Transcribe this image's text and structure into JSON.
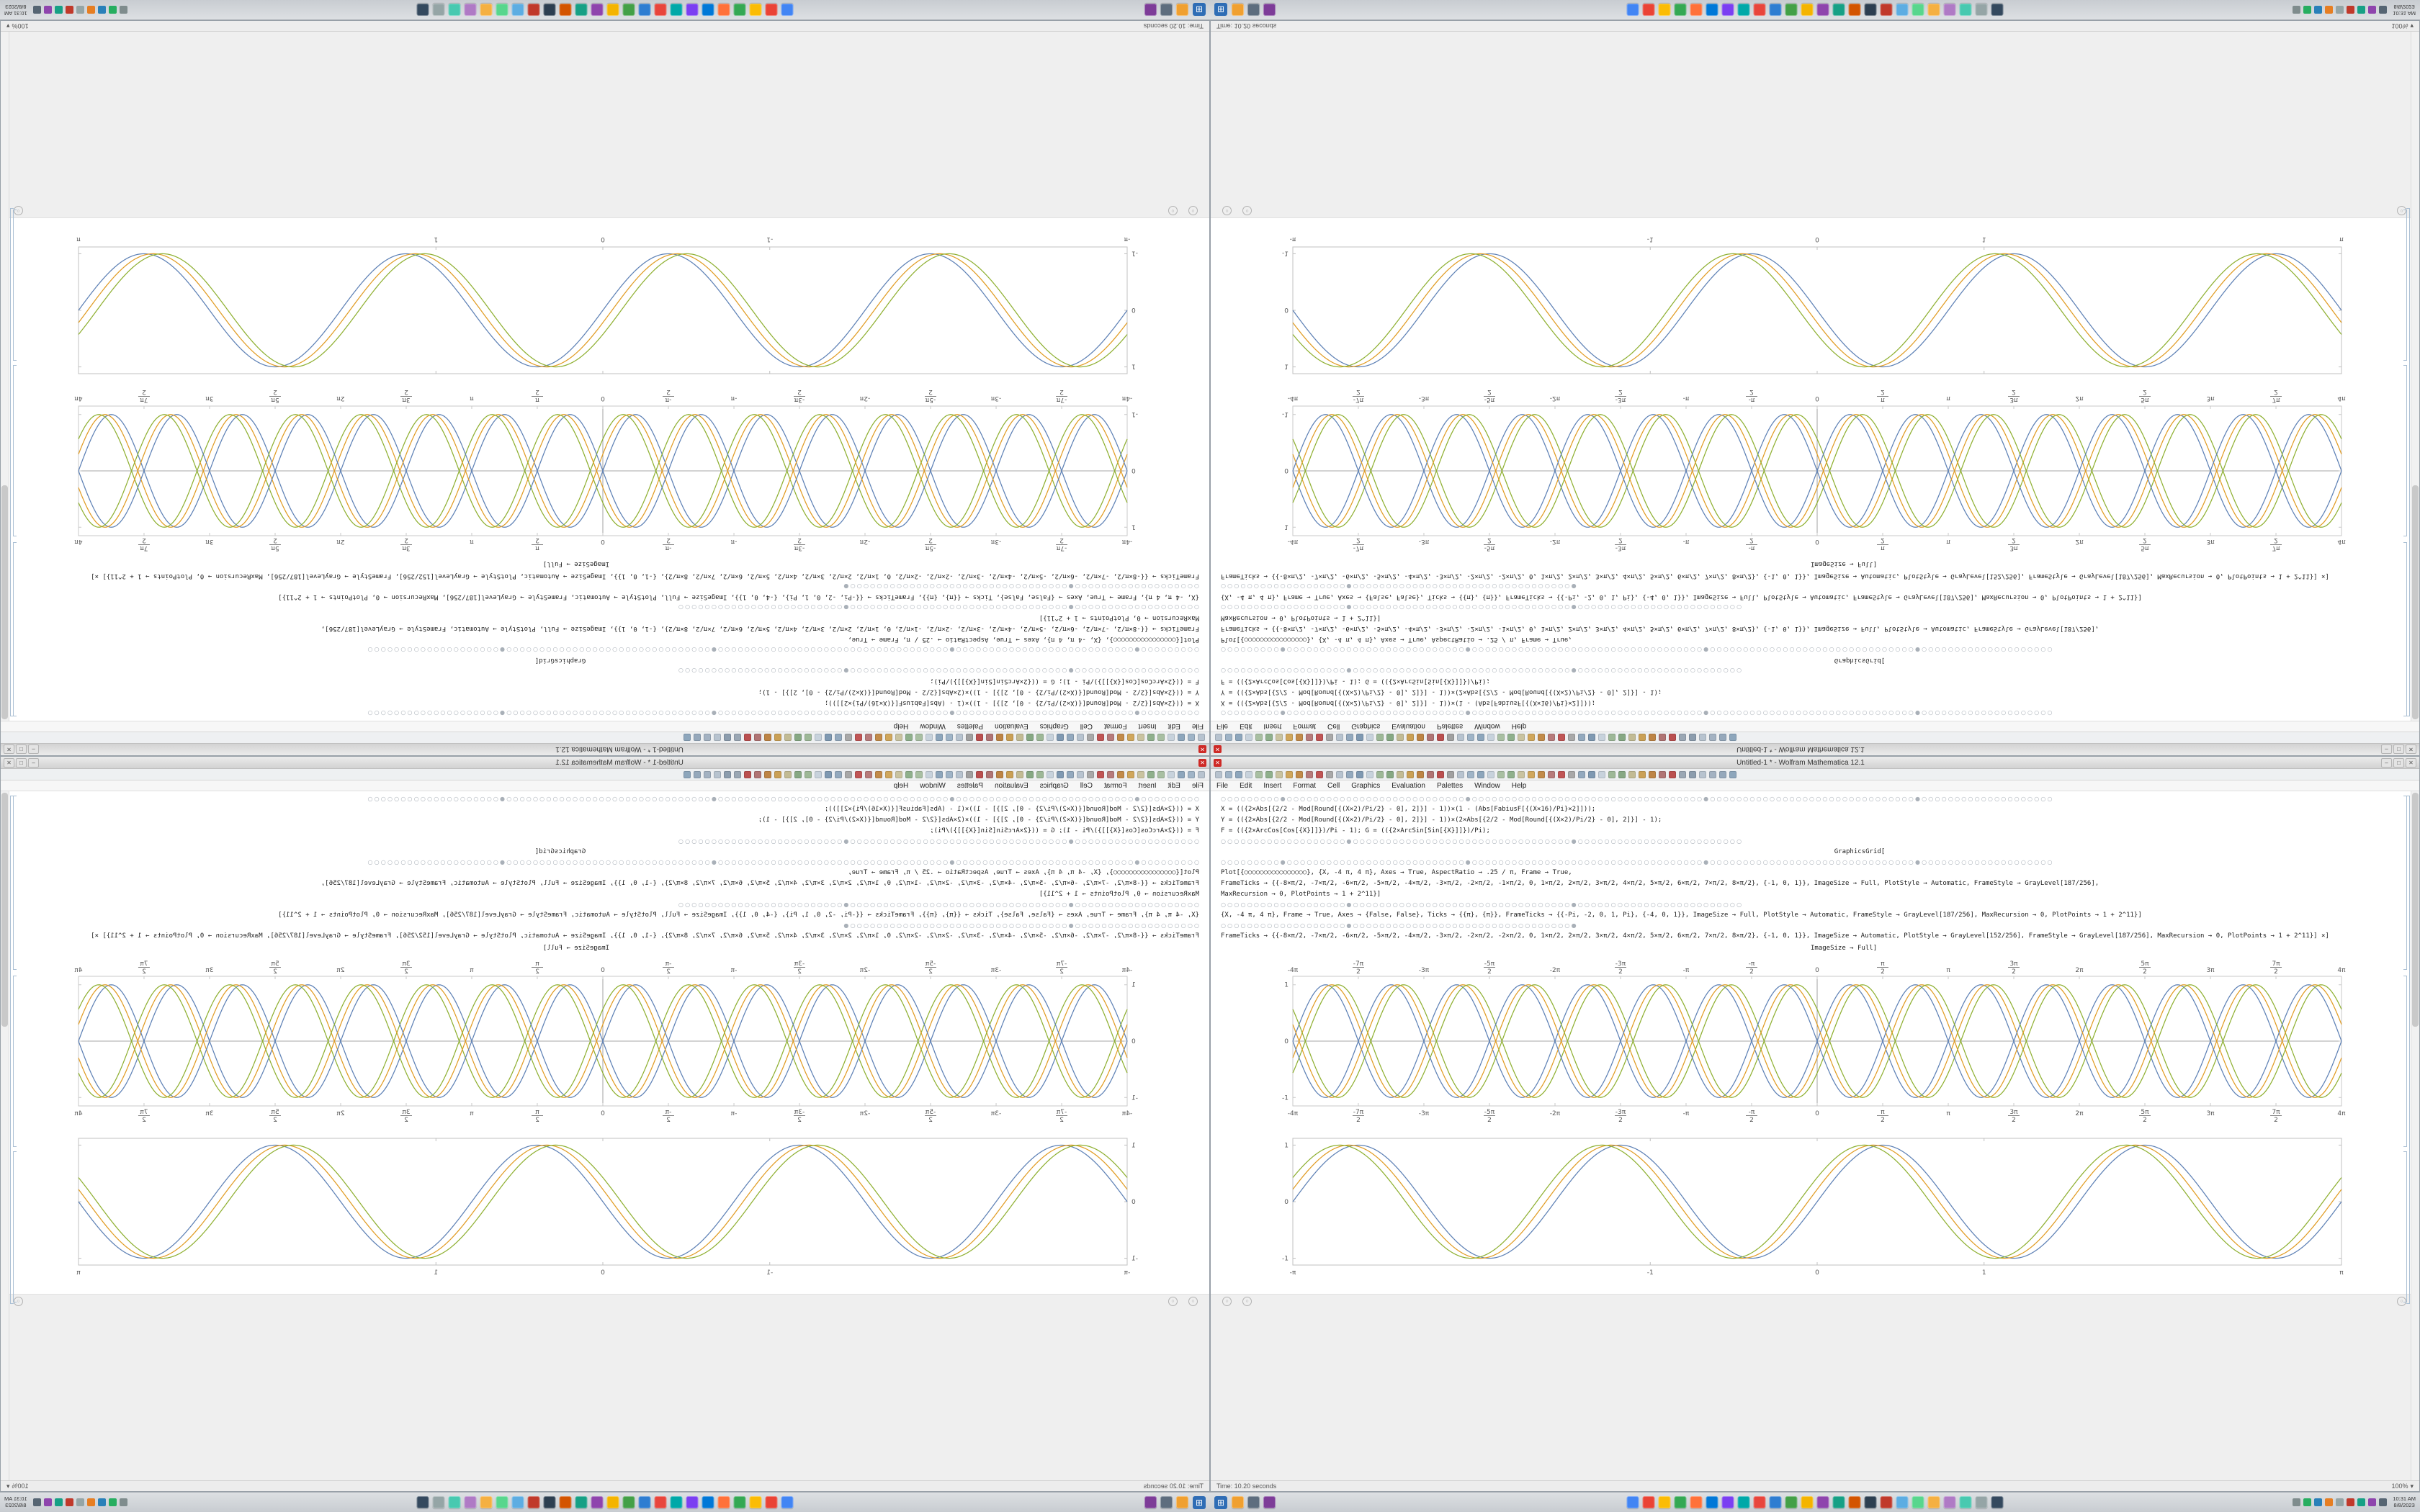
{
  "window": {
    "title": "Untitled-1 * - Wolfram Mathematica 12.1",
    "app_icon_glyph": "✕",
    "window_buttons": [
      "–",
      "□",
      "✕"
    ],
    "menu_items": [
      "File",
      "Edit",
      "Insert",
      "Format",
      "Cell",
      "Graphics",
      "Evaluation",
      "Palettes",
      "Window",
      "Help"
    ]
  },
  "toolbar": {
    "icon_colors": [
      "#b7c3cf",
      "#9fb4c7",
      "#8da6bc",
      "#c7d2dc",
      "#a8bfa2",
      "#8fb08c",
      "#c9c3a0",
      "#d0a75c",
      "#c28b4a",
      "#b77b7b",
      "#c05555",
      "#a8a8a8",
      "#b7c3cf",
      "#93a9be",
      "#7f99b2",
      "#c7d2dc",
      "#9db897",
      "#86a883",
      "#c2bb94",
      "#caa055",
      "#bd8445",
      "#b07474",
      "#ba4f4f",
      "#a0a0a0",
      "#b7c3cf",
      "#9fb4c7",
      "#8da6bc",
      "#c7d2dc",
      "#a8bfa2",
      "#8fb08c",
      "#c9c3a0",
      "#d0a75c",
      "#c28b4a",
      "#b77b7b",
      "#c05555",
      "#a8a8a8",
      "#93a9be",
      "#7f99b2",
      "#c7d2dc",
      "#9db897",
      "#86a883",
      "#c2bb94",
      "#caa055",
      "#bd8445",
      "#b07474",
      "#ba4f4f",
      "#9aa7b4",
      "#8c9dae",
      "#b7c3cf",
      "#a3b2c2",
      "#95a8bb",
      "#8da6bc"
    ]
  },
  "notebook": {
    "corner_glyph": "○",
    "code_lines": [
      {
        "kind": "circles",
        "text": "○○○○○○○○○●○○○○○○○○○○○○○○○○○○○○○○○○○○○●○○○○○○○○○○○○○○○○○○○○○○○○○○○○○○○○○○○●○○○○○○○○○○○○○○○○○○○○○○○○○○○○○○○●○○○○○○○○○○○○○○○○○○○○"
      },
      {
        "kind": "code",
        "text": "X = (({2×Abs[{2/2 - Mod[Round[{(X×2)/Pi/2} - 0], 2]}] - 1))×(1 - (Abs[FabiusF[{(X×16)/Pi}×2]]));"
      },
      {
        "kind": "code",
        "text": "Y = (({2×Abs[{2/2 - Mod[Round[{(X×2)/Pi/2} - 0], 2]}] - 1))×(2×Abs[{2/2 - Mod[Round[{(X×2)/Pi/2} - 0], 2]}] - 1);"
      },
      {
        "kind": "code",
        "text": "F = (({2×ArcCos[Cos[{X}]]})/Pi - 1);   G = (({2×ArcSin[Sin[{X}]]})/Pi);"
      },
      {
        "kind": "circles",
        "text": "○○○○○○○○○○○○○○○○○○○●○○○○○○○○○○○○○○○○○○○○○○○○○○○○○○○○○●○○○○○○○○○○○○○○○○○○○○○○○○○"
      },
      {
        "kind": "center",
        "text": "GraphicsGrid["
      },
      {
        "kind": "circles",
        "text": "○○○○○○○○○●○○○○○○○○○○○○○○○○○○○○○○○○○○○●○○○○○○○○○○○○○○○○○○○○○○○○○○○○○○○○○○○●○○○○○○○○○○○○○○○○○○○○○○○○○○○○○○○●○○○○○○○○○○○○○○○○○○○○"
      },
      {
        "kind": "code",
        "text": "Plot[{○○○○○○○○○○○○○○○○}, {X, -4 π, 4 π}, Axes → True, AspectRatio → .25 / π, Frame → True,"
      },
      {
        "kind": "code",
        "text": "FrameTicks → {{-8×π/2, -7×π/2, -6×π/2, -5×π/2, -4×π/2, -3×π/2, -2×π/2, -1×π/2, 0, 1×π/2, 2×π/2, 3×π/2, 4×π/2, 5×π/2, 6×π/2, 7×π/2, 8×π/2}, {-1, 0, 1}}, ImageSize → Full, PlotStyle → Automatic, FrameStyle → GrayLevel[187/256],"
      },
      {
        "kind": "code",
        "text": "MaxRecursion → 0, PlotPoints → 1 + 2^11}]"
      },
      {
        "kind": "circles",
        "text": "○○○○○○○○○○○○○○○○○○○●○○○○○○○○○○○○○○○○○○○○○○○○○○○○○○○○○●○○○○○○○○○○○○○○○○○○○○○○○○○"
      },
      {
        "kind": "code",
        "text": "{X, -4 π, 4 π}, Frame → True, Axes → {False, False}, Ticks → {{π}, {π}}, FrameTicks → {{-Pi, -2, 0, 1, Pi}, {-4, 0, 1}}, ImageSize → Full, PlotStyle → Automatic, FrameStyle → GrayLevel[187/256], MaxRecursion → 0, PlotPoints → 1 + 2^11}]"
      },
      {
        "kind": "circles",
        "text": "○○○○○○○○○○○○○○○○○○○●○○○○○○○○○○○○○○○○○○○○○○○○○○○○○○○○○●"
      },
      {
        "kind": "code",
        "text": "FrameTicks → {{-8×π/2, -7×π/2, -6×π/2, -5×π/2, -4×π/2, -3×π/2, -2×π/2, -2×π/2, 0, 1×π/2, 2×π/2, 3×π/2, 4×π/2, 5×π/2, 6×π/2, 7×π/2, 8×π/2}, {-1, 0, 1}}, ImageSize → Automatic, PlotStyle → GrayLevel[152/256], FrameStyle → GrayLevel[187/256], MaxRecursion → 0, PlotPoints → 1 + 2^11}] ×]"
      },
      {
        "kind": "caption",
        "text": "ImageSize → Full]"
      }
    ]
  },
  "status_bar": {
    "left": "Time: 10.20 seconds",
    "zoom": "100%",
    "caret": "▾"
  },
  "taskbar": {
    "start_glyph": "⊞",
    "left_icons": [
      "#f0a030",
      "#5d6d7e",
      "#7d3c98"
    ],
    "center_icons": [
      "#4285f4",
      "#ea4335",
      "#fbbc05",
      "#34a853",
      "#ff7139",
      "#0078d7",
      "#7b3ff2",
      "#00a8a8",
      "#e8453c",
      "#2e7dd1",
      "#43a047",
      "#f4b400",
      "#8e44ad",
      "#16a085",
      "#d35400",
      "#2c3e50",
      "#c0392b",
      "#5dade2",
      "#58d68d",
      "#f5b041",
      "#af7ac5",
      "#48c9b0",
      "#95a5a6",
      "#34495e"
    ],
    "tray_icons": [
      "#7f8c8d",
      "#27ae60",
      "#2980b9",
      "#e67e22",
      "#95a5a6",
      "#c0392b",
      "#16a085",
      "#8e44ad",
      "#566573"
    ],
    "clock_time": "10:31 AM",
    "clock_date": "8/8/2023"
  },
  "chart_data": [
    {
      "id": "waves-axes-plot",
      "type": "line",
      "title": "",
      "xlabel": "",
      "ylabel": "",
      "x_range": [
        -12.566,
        12.566
      ],
      "y_range": [
        -1.15,
        1.15
      ],
      "frame": true,
      "axes": true,
      "labels_top": true,
      "grid": false,
      "frame_color": "#c9c9c9",
      "xticks": [
        {
          "v": -12.566,
          "l": "-4π"
        },
        {
          "v": -10.996,
          "l": "-7π|2"
        },
        {
          "v": -9.425,
          "l": "-3π"
        },
        {
          "v": -7.854,
          "l": "-5π|2"
        },
        {
          "v": -6.283,
          "l": "-2π"
        },
        {
          "v": -4.712,
          "l": "-3π|2"
        },
        {
          "v": -3.142,
          "l": "-π"
        },
        {
          "v": -1.571,
          "l": "-π|2"
        },
        {
          "v": 0,
          "l": "0"
        },
        {
          "v": 1.571,
          "l": "π|2"
        },
        {
          "v": 3.142,
          "l": "π"
        },
        {
          "v": 4.712,
          "l": "3π|2"
        },
        {
          "v": 6.283,
          "l": "2π"
        },
        {
          "v": 7.854,
          "l": "5π|2"
        },
        {
          "v": 9.425,
          "l": "3π"
        },
        {
          "v": 10.996,
          "l": "7π|2"
        },
        {
          "v": 12.566,
          "l": "4π"
        }
      ],
      "yticks": [
        {
          "v": -1,
          "l": "-1"
        },
        {
          "v": 0,
          "l": "0"
        },
        {
          "v": 1,
          "l": "1"
        }
      ],
      "series": [
        {
          "name": "sin(2x)",
          "fn": "sin",
          "freq": 2,
          "phase": 0,
          "amp": 1,
          "sign": 1,
          "color": "#5e81b5"
        },
        {
          "name": "sin(2x-0.3)",
          "fn": "sin",
          "freq": 2,
          "phase": -0.3,
          "amp": 1,
          "sign": 1,
          "color": "#e19c24"
        },
        {
          "name": "sin(2x-0.6)",
          "fn": "sin",
          "freq": 2,
          "phase": -0.6,
          "amp": 1,
          "sign": 1,
          "color": "#8fb032"
        },
        {
          "name": "-sin(2x)",
          "fn": "sin",
          "freq": 2,
          "phase": 0,
          "amp": 1,
          "sign": -1,
          "color": "#5e81b5"
        },
        {
          "name": "-sin(2x-0.3)",
          "fn": "sin",
          "freq": 2,
          "phase": -0.3,
          "amp": 1,
          "sign": -1,
          "color": "#e19c24"
        },
        {
          "name": "-sin(2x-0.6)",
          "fn": "sin",
          "freq": 2,
          "phase": -0.6,
          "amp": 1,
          "sign": -1,
          "color": "#8fb032"
        }
      ]
    },
    {
      "id": "waves-framed-plot",
      "type": "line",
      "title": "",
      "xlabel": "",
      "ylabel": "",
      "x_range": [
        -3.1416,
        3.1416
      ],
      "y_range": [
        -1.12,
        1.12
      ],
      "frame": true,
      "axes": false,
      "labels_top": false,
      "grid": false,
      "frame_color": "#c0c0c0",
      "xticks": [
        {
          "v": -3.1416,
          "l": "-π"
        },
        {
          "v": -1,
          "l": "-1"
        },
        {
          "v": 0,
          "l": "0"
        },
        {
          "v": 1,
          "l": "1"
        },
        {
          "v": 3.1416,
          "l": "π"
        }
      ],
      "yticks": [
        {
          "v": -1,
          "l": "-1"
        },
        {
          "v": 0,
          "l": "0"
        },
        {
          "v": 1,
          "l": "1"
        }
      ],
      "series": [
        {
          "name": "sin(4x)",
          "fn": "sin",
          "freq": 4,
          "phase": 0,
          "amp": 1,
          "sign": 1,
          "color": "#5e81b5"
        },
        {
          "name": "sin(4x+0.22)",
          "fn": "sin",
          "freq": 4,
          "phase": 0.22,
          "amp": 1,
          "sign": 1,
          "color": "#e19c24"
        },
        {
          "name": "sin(4x+0.44)",
          "fn": "sin",
          "freq": 4,
          "phase": 0.44,
          "amp": 1,
          "sign": 1,
          "color": "#8fb032"
        }
      ]
    }
  ]
}
